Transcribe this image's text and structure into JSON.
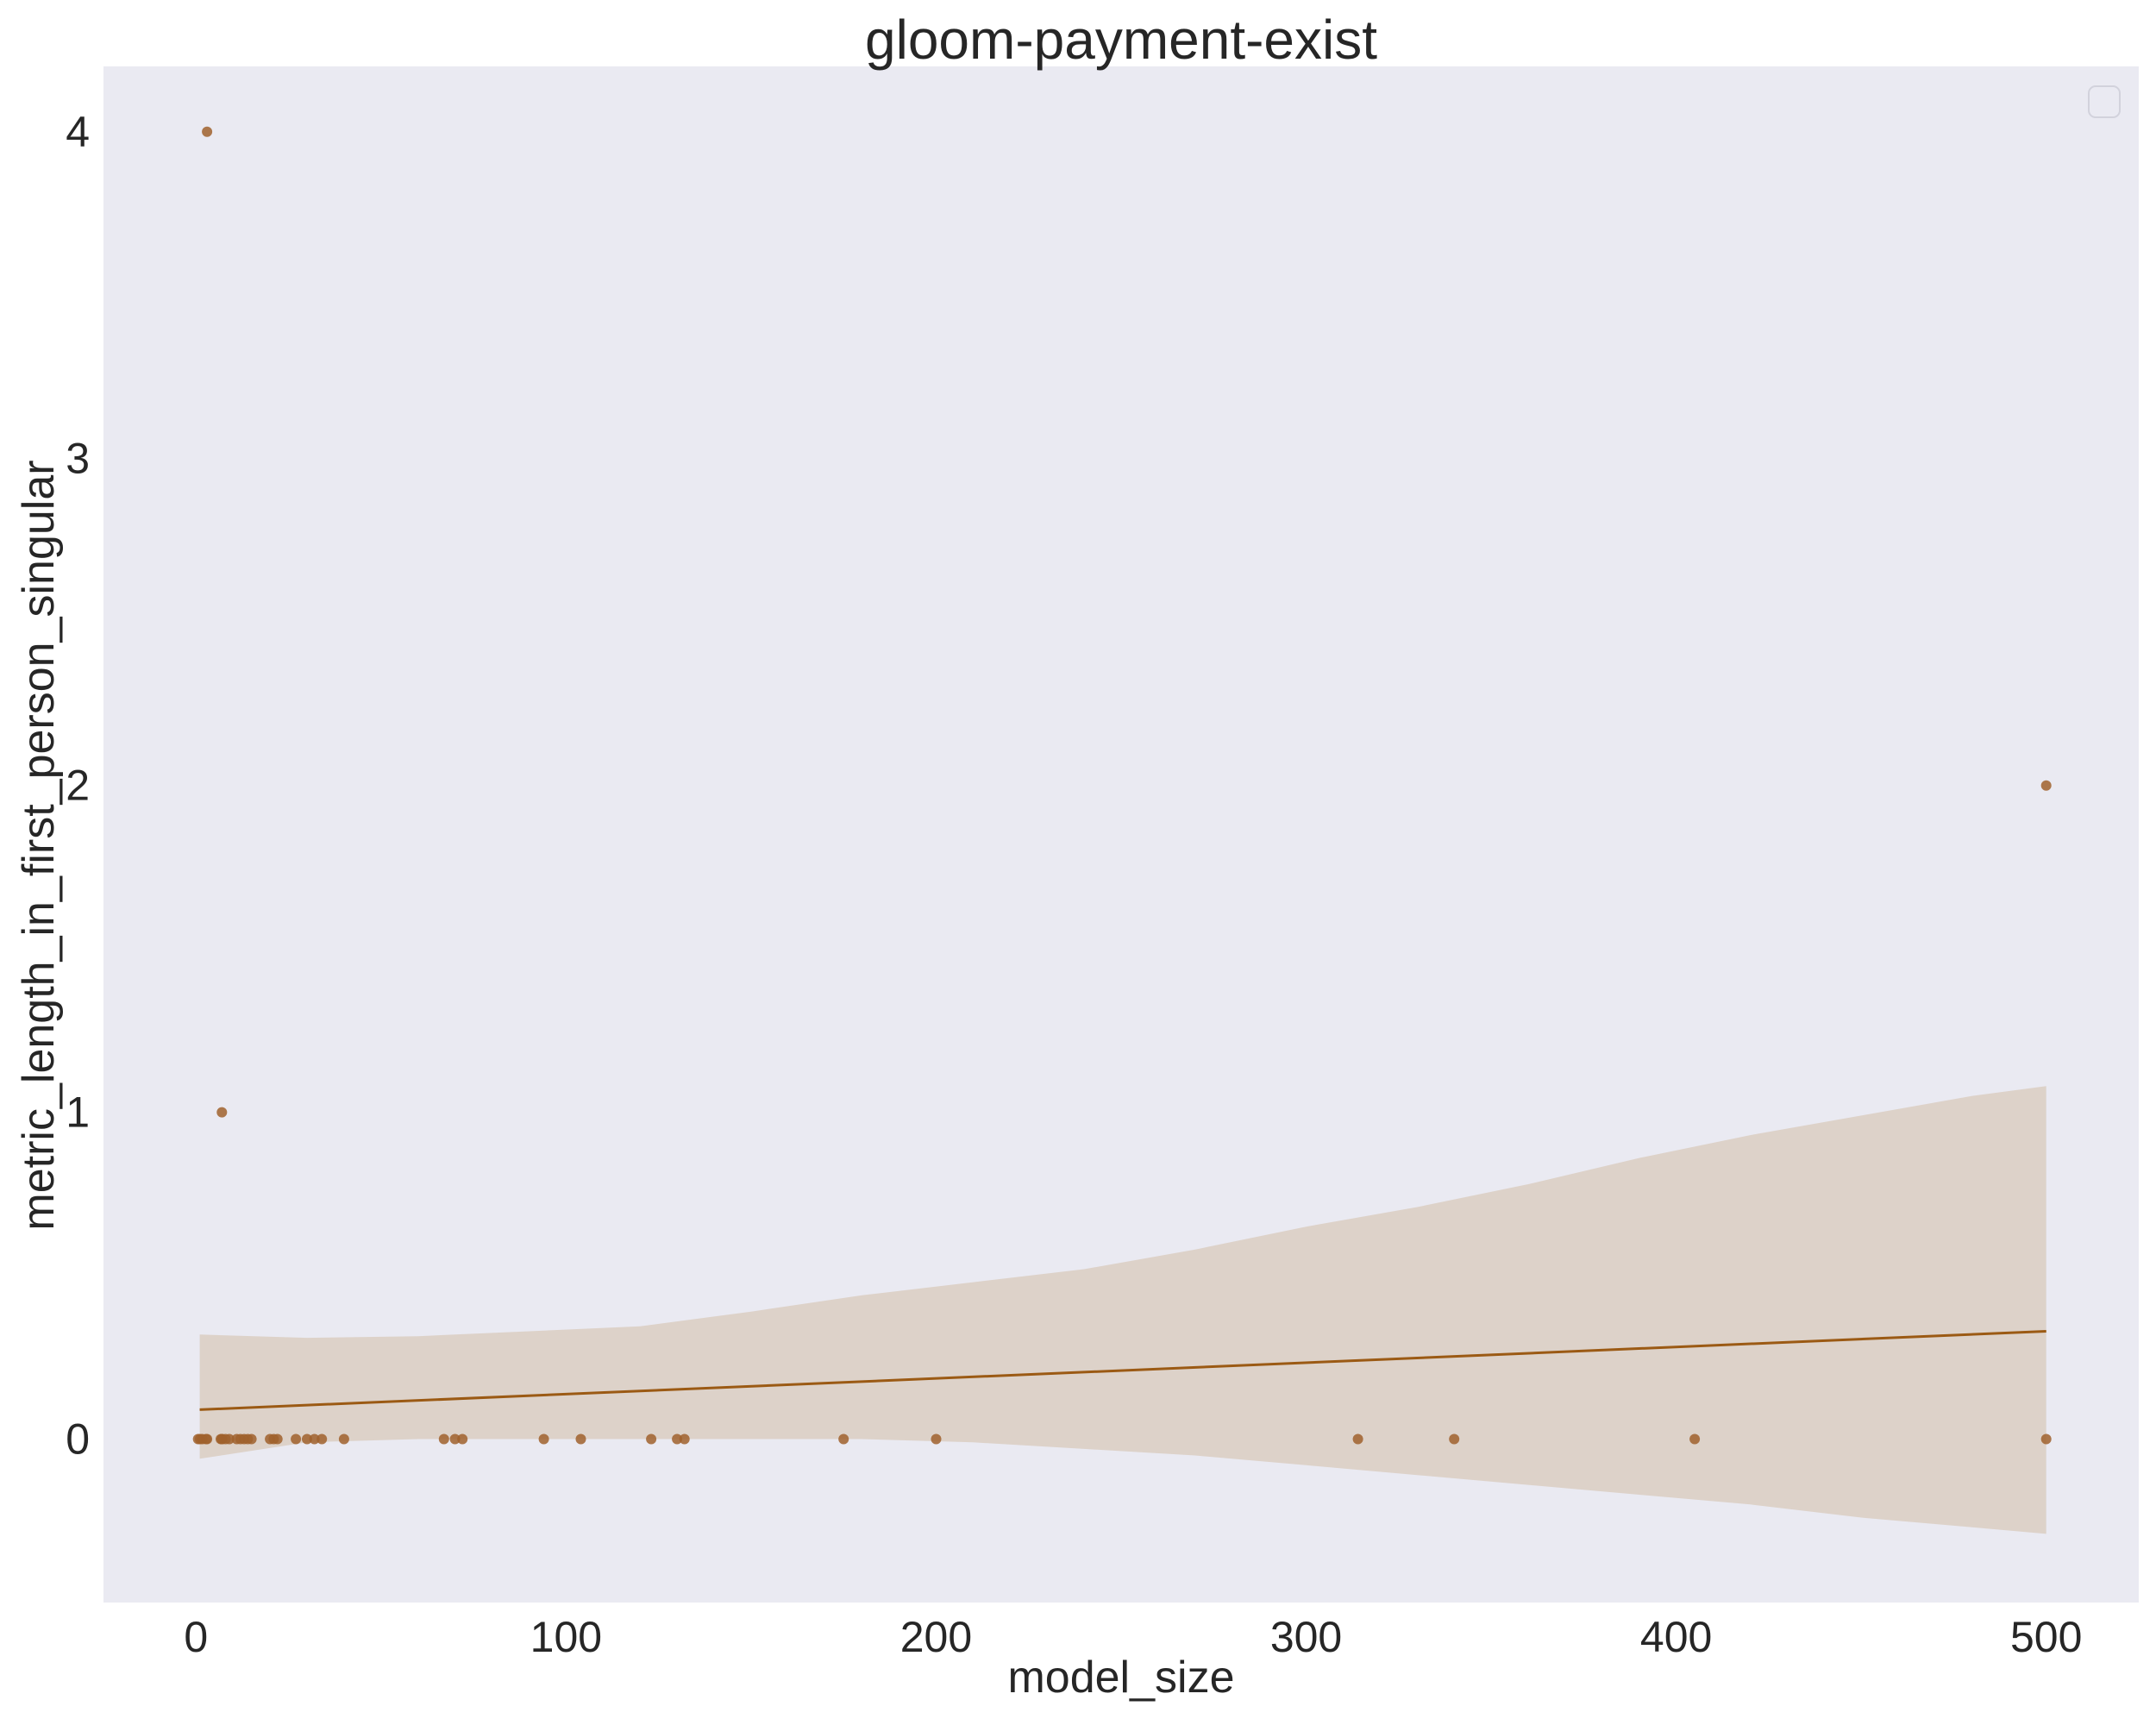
{
  "chart_data": {
    "type": "scatter",
    "title": "gloom-payment-exist",
    "xlabel": "model_size",
    "ylabel": "metric_length_in_first_person_singular",
    "xlim": [
      -25,
      525
    ],
    "ylim": [
      -0.5,
      4.2
    ],
    "xticks": [
      0,
      100,
      200,
      300,
      400,
      500
    ],
    "yticks": [
      0,
      1,
      2,
      3,
      4
    ],
    "grid": false,
    "legend": "top-right (empty)",
    "colors": {
      "background": "#EAEAF2",
      "points": "#A0622D",
      "line": "#9B5A14",
      "band": "#DCCFC4"
    },
    "points": {
      "x": [
        0.56,
        1.1,
        1.7,
        2.7,
        3,
        6.7,
        7,
        7.1,
        8,
        9,
        11,
        12,
        13,
        14,
        15,
        20,
        21,
        22,
        27,
        30,
        32,
        34,
        40,
        67,
        70,
        72,
        94,
        104,
        123,
        130,
        132,
        175,
        200,
        314,
        340,
        405,
        500,
        3,
        7,
        500
      ],
      "y": [
        0,
        0,
        0,
        0,
        0,
        0,
        0,
        0,
        0,
        0,
        0,
        0,
        0,
        0,
        0,
        0,
        0,
        0,
        0,
        0,
        0,
        0,
        0,
        0,
        0,
        0,
        0,
        0,
        0,
        0,
        0,
        0,
        0,
        0,
        0,
        0,
        0,
        4,
        1,
        2
      ]
    },
    "regression": {
      "x": [
        1,
        500
      ],
      "y": [
        0.09,
        0.33
      ]
    },
    "confidence_band": {
      "x": [
        1,
        30,
        60,
        90,
        120,
        150,
        180,
        210,
        240,
        270,
        300,
        330,
        360,
        390,
        420,
        450,
        480,
        500
      ],
      "upper": [
        0.32,
        0.31,
        0.315,
        0.33,
        0.345,
        0.39,
        0.44,
        0.48,
        0.52,
        0.58,
        0.65,
        0.71,
        0.78,
        0.86,
        0.93,
        0.99,
        1.05,
        1.08
      ],
      "lower": [
        -0.06,
        -0.01,
        0.0,
        0.0,
        0.0,
        0.0,
        0.0,
        -0.01,
        -0.03,
        -0.05,
        -0.08,
        -0.11,
        -0.14,
        -0.17,
        -0.2,
        -0.24,
        -0.27,
        -0.29
      ]
    }
  }
}
